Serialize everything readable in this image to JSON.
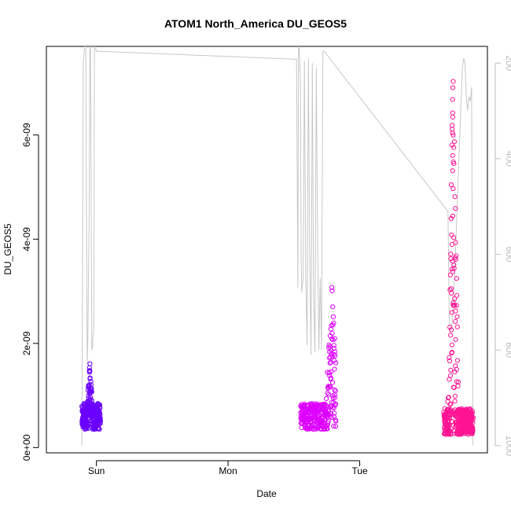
{
  "chart_data": {
    "type": "scatter",
    "title": "ATOM1 North_America DU_GEOS5",
    "xlabel": "Date",
    "ylabel": "DU_GEOS5",
    "x_tick_labels": [
      "Sun",
      "Mon",
      "Tue"
    ],
    "x_tick_positions_days": [
      1,
      2,
      3
    ],
    "xlim_days": [
      0.62,
      3.97
    ],
    "y_ticks": [
      0,
      2e-09,
      4e-09,
      6e-09
    ],
    "y_tick_labels": [
      "0e+00",
      "2e-09",
      "4e-09",
      "6e-09"
    ],
    "ylim": [
      -1e-10,
      7.7e-09
    ],
    "y2_ticks": [
      200,
      400,
      600,
      800,
      1000
    ],
    "y2_tick_labels": [
      "200",
      "400",
      "600",
      "800",
      "1000"
    ],
    "y2lim_reversed": [
      1015,
      165
    ],
    "grid": false,
    "legend": "none",
    "colors": {
      "flight1": "#6a00ff",
      "flight2": "#dd00ff",
      "flight3": "#ff1493",
      "pressure_line": "#c8c8c8"
    },
    "series": [
      {
        "marker": "open-circle",
        "x_range_days": [
          0.89,
          1.03
        ],
        "baseline": 6e-10,
        "min": 1.5e-10,
        "max": 1.67e-09,
        "peak_x_days": 0.95
      },
      {
        "marker": "open-circle",
        "x_range_days": [
          2.55,
          2.82
        ],
        "baseline": 6e-10,
        "min": 2.5e-10,
        "max": 3.2e-09,
        "peak_x_days": 2.79
      },
      {
        "marker": "open-circle",
        "x_range_days": [
          3.64,
          3.86
        ],
        "baseline": 5e-10,
        "min": 1.5e-10,
        "max": 7.5e-09,
        "peak_x_days": 3.71
      }
    ],
    "pressure_line": {
      "axis": "right",
      "points": [
        [
          0.89,
          1000
        ],
        [
          0.9,
          200
        ],
        [
          0.91,
          165
        ],
        [
          0.92,
          165
        ],
        [
          0.925,
          540
        ],
        [
          0.93,
          830
        ],
        [
          0.935,
          770
        ],
        [
          0.94,
          640
        ],
        [
          0.945,
          520
        ],
        [
          0.95,
          165
        ],
        [
          0.955,
          165
        ],
        [
          0.96,
          470
        ],
        [
          0.965,
          800
        ],
        [
          0.97,
          795
        ],
        [
          0.975,
          770
        ],
        [
          0.98,
          760
        ],
        [
          0.985,
          165
        ],
        [
          0.99,
          165
        ],
        [
          1.0,
          175
        ],
        [
          2.52,
          192
        ],
        [
          2.53,
          670
        ],
        [
          2.535,
          165
        ],
        [
          2.54,
          165
        ],
        [
          2.55,
          240
        ],
        [
          2.555,
          600
        ],
        [
          2.56,
          680
        ],
        [
          2.57,
          650
        ],
        [
          2.58,
          195
        ],
        [
          2.59,
          640
        ],
        [
          2.6,
          790
        ],
        [
          2.61,
          190
        ],
        [
          2.62,
          590
        ],
        [
          2.63,
          810
        ],
        [
          2.64,
          200
        ],
        [
          2.65,
          680
        ],
        [
          2.66,
          805
        ],
        [
          2.67,
          210
        ],
        [
          2.68,
          580
        ],
        [
          2.69,
          800
        ],
        [
          2.7,
          650
        ],
        [
          2.71,
          800
        ],
        [
          2.72,
          175
        ],
        [
          2.73,
          175
        ],
        [
          3.67,
          510
        ],
        [
          3.68,
          730
        ],
        [
          3.69,
          760
        ],
        [
          3.7,
          750
        ],
        [
          3.72,
          650
        ],
        [
          3.74,
          500
        ],
        [
          3.76,
          350
        ],
        [
          3.78,
          210
        ],
        [
          3.79,
          190
        ],
        [
          3.8,
          200
        ],
        [
          3.81,
          270
        ],
        [
          3.82,
          300
        ],
        [
          3.83,
          270
        ],
        [
          3.84,
          280
        ],
        [
          3.85,
          250
        ],
        [
          3.86,
          1000
        ]
      ]
    }
  }
}
